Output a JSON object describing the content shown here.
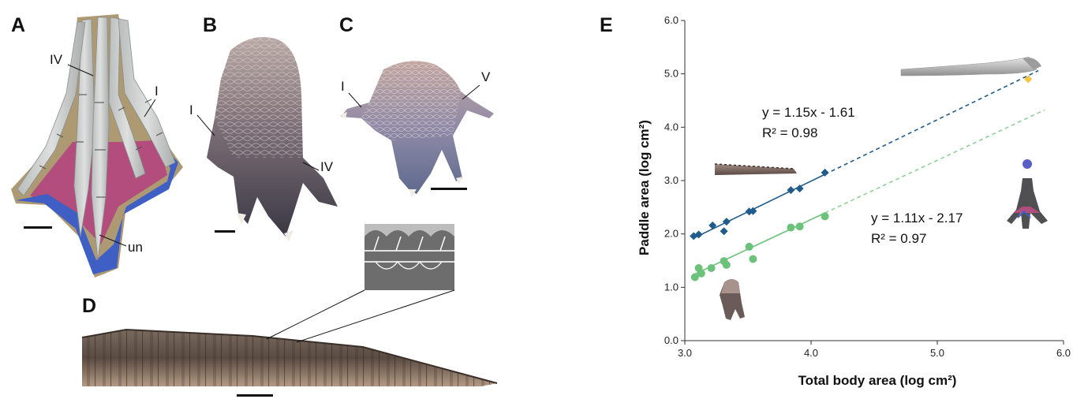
{
  "panels": {
    "A": {
      "letter": "A",
      "labels": {
        "iv": "IV",
        "i": "I",
        "un": "un"
      }
    },
    "B": {
      "letter": "B",
      "labels": {
        "i": "I",
        "iv": "IV"
      }
    },
    "C": {
      "letter": "C",
      "labels": {
        "i": "I",
        "v": "V"
      }
    },
    "D": {
      "letter": "D"
    },
    "E": {
      "letter": "E"
    }
  },
  "colors": {
    "series_dark": "#1f5c8c",
    "series_green": "#6cc27a",
    "highlight": "#f5c542",
    "webbing_pink": "#b24d7e",
    "webbing_blue": "#3f5fc4",
    "bone": "#c9ccc9",
    "outline": "#a08c64"
  },
  "chart_data": {
    "type": "scatter",
    "xlabel": "Total body area (log cm²)",
    "ylabel": "Paddle area (log cm²)",
    "xlim": [
      3.0,
      6.0
    ],
    "ylim": [
      0.0,
      6.0
    ],
    "xticks": [
      "3.0",
      "4.0",
      "5.0",
      "6.0"
    ],
    "yticks": [
      "0.0",
      "1.0",
      "2.0",
      "3.0",
      "4.0",
      "5.0",
      "6.0"
    ],
    "grid": false,
    "series": [
      {
        "marker": "diamond",
        "color": "#1f5c8c",
        "points": [
          [
            3.07,
            1.96
          ],
          [
            3.11,
            1.99
          ],
          [
            3.22,
            2.16
          ],
          [
            3.31,
            2.05
          ],
          [
            3.33,
            2.23
          ],
          [
            3.51,
            2.42
          ],
          [
            3.54,
            2.43
          ],
          [
            3.84,
            2.82
          ],
          [
            3.91,
            2.85
          ],
          [
            4.11,
            3.15
          ]
        ],
        "fit": {
          "slope": 1.15,
          "intercept": -1.61,
          "solid_to": 4.11,
          "dashed_to": 5.8
        },
        "equation": "y = 1.15x - 1.61",
        "r2": "R² = 0.98"
      },
      {
        "marker": "circle",
        "color": "#6cc27a",
        "points": [
          [
            3.08,
            1.19
          ],
          [
            3.11,
            1.36
          ],
          [
            3.13,
            1.26
          ],
          [
            3.21,
            1.36
          ],
          [
            3.31,
            1.49
          ],
          [
            3.33,
            1.42
          ],
          [
            3.51,
            1.76
          ],
          [
            3.54,
            1.53
          ],
          [
            3.84,
            2.12
          ],
          [
            3.91,
            2.14
          ],
          [
            4.11,
            2.33
          ]
        ],
        "fit": {
          "slope": 1.11,
          "intercept": -2.17,
          "solid_to": 4.11,
          "dashed_to": 5.85
        },
        "equation": "y = 1.11x - 2.17",
        "r2": "R² = 0.97"
      }
    ],
    "highlight_point": {
      "x": 5.72,
      "y": 4.9,
      "color": "#f5c542"
    },
    "extra_point": {
      "x": 5.72,
      "y": 3.36,
      "color": "#5a5ec7"
    }
  }
}
